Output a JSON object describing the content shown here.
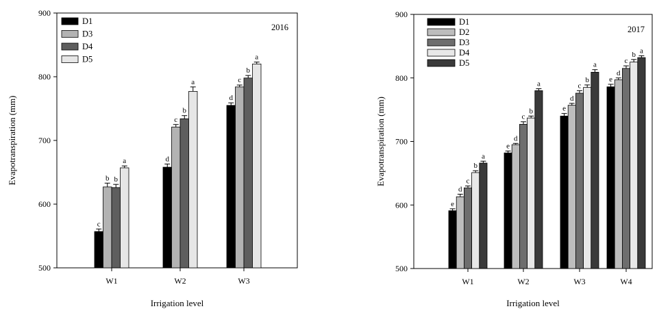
{
  "chart_data": [
    {
      "type": "bar",
      "title": "2016",
      "xlabel": "Irrigation level",
      "ylabel": "Evapotranspiration (mm)",
      "ylim": [
        500,
        900
      ],
      "yticks": [
        500,
        600,
        700,
        800,
        900
      ],
      "legend_position": "top-left",
      "grid": false,
      "categories": [
        "W1",
        "W2",
        "W3"
      ],
      "series": [
        {
          "name": "D1",
          "color": "#000000",
          "values": [
            557,
            658,
            755
          ],
          "errors": [
            4,
            5,
            4
          ],
          "letters": [
            "c",
            "d",
            "d"
          ]
        },
        {
          "name": "D3",
          "color": "#b3b3b3",
          "values": [
            627,
            721,
            784
          ],
          "errors": [
            6,
            4,
            3
          ],
          "letters": [
            "b",
            "c",
            "c"
          ]
        },
        {
          "name": "D4",
          "color": "#5e5e5e",
          "values": [
            626,
            734,
            798
          ],
          "errors": [
            5,
            5,
            4
          ],
          "letters": [
            "b",
            "b",
            "b"
          ]
        },
        {
          "name": "D5",
          "color": "#e6e6e6",
          "values": [
            657,
            777,
            820
          ],
          "errors": [
            3,
            7,
            3
          ],
          "letters": [
            "a",
            "a",
            "a"
          ]
        }
      ]
    },
    {
      "type": "bar",
      "title": "2017",
      "xlabel": "Irrigation level",
      "ylabel": "Evapotranspiration (mm)",
      "ylim": [
        500,
        900
      ],
      "yticks": [
        500,
        600,
        700,
        800,
        900
      ],
      "legend_position": "top-left",
      "grid": false,
      "categories": [
        "W1",
        "W2",
        "W3",
        "W4"
      ],
      "series": [
        {
          "name": "D1",
          "color": "#000000",
          "values": [
            591,
            682,
            740,
            786
          ],
          "errors": [
            3,
            3,
            4,
            4
          ],
          "letters": [
            "e",
            "e",
            "e",
            "e"
          ]
        },
        {
          "name": "D2",
          "color": "#bdbdbd",
          "values": [
            613,
            695,
            757,
            797
          ],
          "errors": [
            4,
            2,
            3,
            3
          ],
          "letters": [
            "d",
            "d",
            "d",
            "d"
          ]
        },
        {
          "name": "D3",
          "color": "#6e6e6e",
          "values": [
            627,
            727,
            776,
            815
          ],
          "errors": [
            3,
            4,
            4,
            4
          ],
          "letters": [
            "c",
            "c",
            "c",
            "c"
          ]
        },
        {
          "name": "D4",
          "color": "#e8e8e8",
          "values": [
            651,
            737,
            785,
            825
          ],
          "errors": [
            3,
            3,
            4,
            4
          ],
          "letters": [
            "b",
            "b",
            "b",
            "b"
          ]
        },
        {
          "name": "D5",
          "color": "#3a3a3a",
          "values": [
            666,
            780,
            809,
            832
          ],
          "errors": [
            3,
            3,
            4,
            3
          ],
          "letters": [
            "a",
            "a",
            "a",
            "a"
          ]
        }
      ]
    }
  ]
}
